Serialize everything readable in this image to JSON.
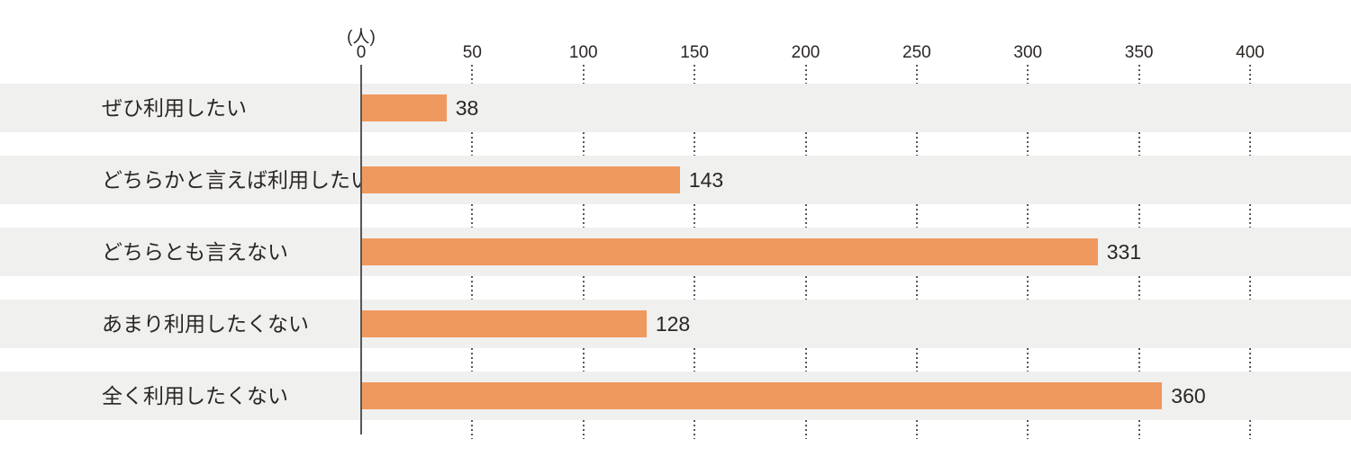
{
  "chart_data": {
    "type": "bar",
    "orientation": "horizontal",
    "title": "",
    "unit_label": "(人)",
    "categories": [
      "ぜひ利用したい",
      "どちらかと言えば利用したい",
      "どちらとも言えない",
      "あまり利用したくない",
      "全く利用したくない"
    ],
    "values": [
      38,
      143,
      331,
      128,
      360
    ],
    "x_ticks": [
      0,
      50,
      100,
      150,
      200,
      250,
      300,
      350,
      400
    ],
    "xlim": [
      0,
      445
    ],
    "grid": "dotted-vertical-between-rows",
    "legend": "none",
    "colors": {
      "bar": "#f0995e",
      "row_band": "#f0f0ef",
      "axis_line": "#595757",
      "gridline_dots": "#595757",
      "text": "#2a2624"
    }
  }
}
